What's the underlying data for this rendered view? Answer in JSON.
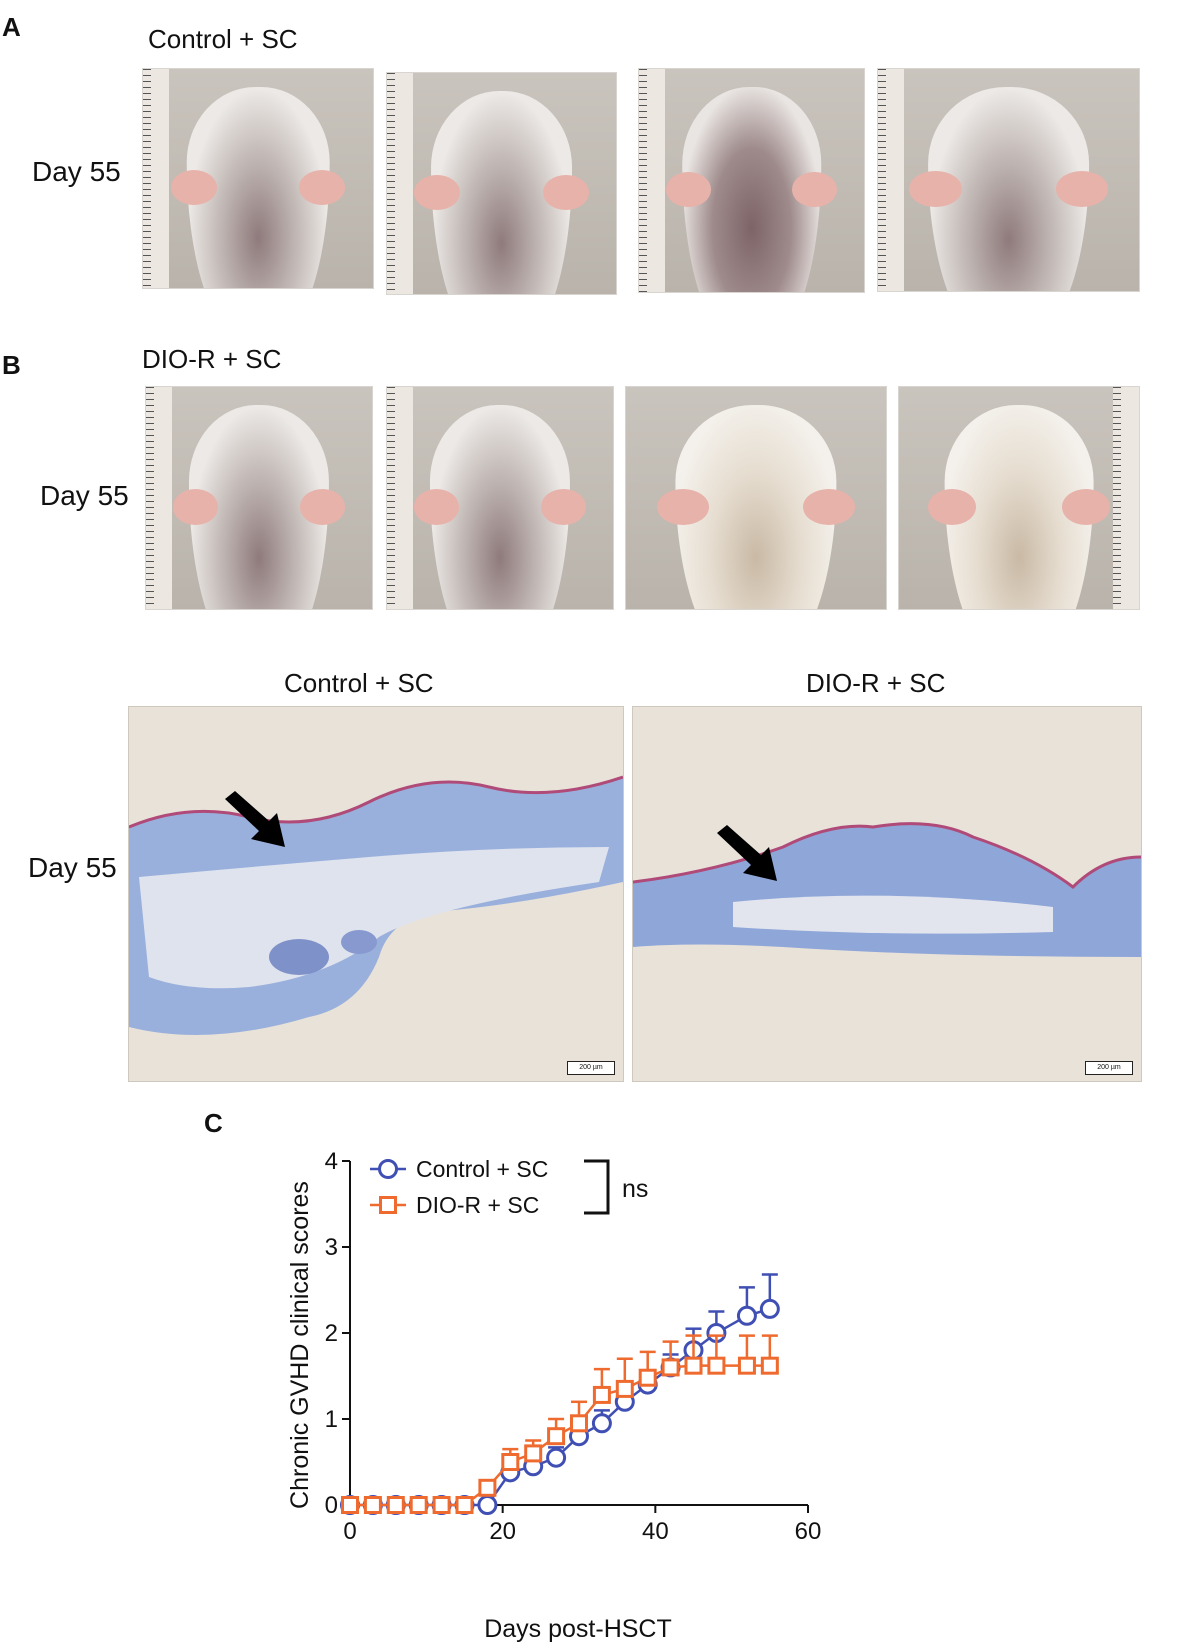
{
  "panel_a": {
    "letter": "A",
    "group_title": "Control + SC",
    "row_label": "Day 55",
    "photos": [
      {
        "name": "mouse-photo-1"
      },
      {
        "name": "mouse-photo-2"
      },
      {
        "name": "mouse-photo-3"
      },
      {
        "name": "mouse-photo-4"
      }
    ]
  },
  "panel_b": {
    "letter": "B",
    "group_title": "DIO-R + SC",
    "row_label": "Day 55",
    "histology": {
      "row_label": "Day 55",
      "left_title": "Control + SC",
      "right_title": "DIO-R + SC",
      "scale_bar": "200 µm"
    }
  },
  "panel_c": {
    "letter": "C",
    "bracket_label": "ns"
  },
  "chart_data": {
    "type": "line",
    "title": "",
    "xlabel": "Days post-HSCT",
    "ylabel": "Chronic GVHD clinical scores",
    "xlim": [
      0,
      60
    ],
    "ylim": [
      0,
      4
    ],
    "xticks": [
      0,
      20,
      40,
      60
    ],
    "yticks": [
      0,
      1,
      2,
      3,
      4
    ],
    "grid": false,
    "legend_position": "top-left",
    "series": [
      {
        "name": "Control + SC",
        "color": "#3f4fb3",
        "marker": "circle",
        "x": [
          0,
          3,
          6,
          9,
          12,
          15,
          18,
          21,
          24,
          27,
          30,
          33,
          36,
          39,
          42,
          45,
          48,
          52,
          55
        ],
        "y": [
          0,
          0,
          0,
          0,
          0,
          0,
          0,
          0.38,
          0.45,
          0.55,
          0.8,
          0.95,
          1.2,
          1.4,
          1.6,
          1.8,
          2.0,
          2.2,
          2.28
        ],
        "err": [
          0,
          0,
          0,
          0,
          0,
          0,
          0,
          0.1,
          0.1,
          0.12,
          0.15,
          0.15,
          0.18,
          0.15,
          0.15,
          0.25,
          0.25,
          0.33,
          0.4
        ]
      },
      {
        "name": "DIO-R + SC",
        "color": "#ee6a2e",
        "marker": "square",
        "x": [
          0,
          3,
          6,
          9,
          12,
          15,
          18,
          21,
          24,
          27,
          30,
          33,
          36,
          39,
          42,
          45,
          48,
          52,
          55
        ],
        "y": [
          0,
          0,
          0,
          0,
          0,
          0,
          0.2,
          0.5,
          0.6,
          0.8,
          0.95,
          1.28,
          1.35,
          1.48,
          1.6,
          1.62,
          1.62,
          1.62,
          1.62
        ],
        "err": [
          0,
          0,
          0,
          0,
          0,
          0,
          0.05,
          0.15,
          0.15,
          0.2,
          0.25,
          0.3,
          0.35,
          0.3,
          0.3,
          0.35,
          0.35,
          0.35,
          0.35
        ]
      }
    ]
  }
}
